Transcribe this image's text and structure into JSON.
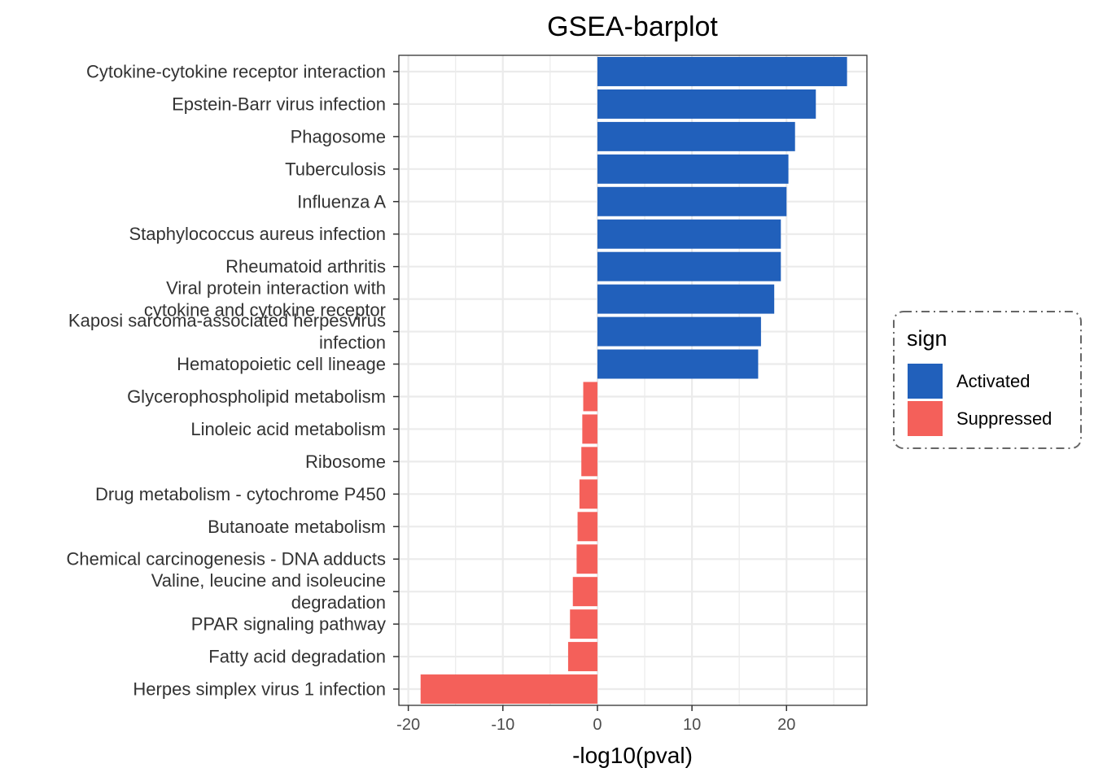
{
  "chart_data": {
    "type": "bar",
    "orientation": "horizontal",
    "title": "GSEA-barplot",
    "xlabel": "-log10(pval)",
    "ylabel": "",
    "xlim": [
      -21,
      28.5
    ],
    "xticks": [
      -20,
      -10,
      0,
      10,
      20
    ],
    "xtick_labels": [
      "-20",
      "-10",
      "0",
      "10",
      "20"
    ],
    "grid": true,
    "legend": {
      "title": "sign",
      "position": "right",
      "entries": [
        {
          "label": "Activated",
          "color": "#2160BB"
        },
        {
          "label": "Suppressed",
          "color": "#F4605A"
        }
      ]
    },
    "categories": [
      [
        "Cytokine-cytokine receptor interaction"
      ],
      [
        "Epstein-Barr virus infection"
      ],
      [
        "Phagosome"
      ],
      [
        "Tuberculosis"
      ],
      [
        "Influenza A"
      ],
      [
        "Staphylococcus aureus infection"
      ],
      [
        "Rheumatoid arthritis"
      ],
      [
        "Viral protein interaction with",
        "cytokine and cytokine receptor"
      ],
      [
        "Kaposi sarcoma-associated herpesvirus",
        "infection"
      ],
      [
        "Hematopoietic cell lineage"
      ],
      [
        "Glycerophospholipid metabolism"
      ],
      [
        "Linoleic acid metabolism"
      ],
      [
        "Ribosome"
      ],
      [
        "Drug metabolism - cytochrome P450"
      ],
      [
        "Butanoate metabolism"
      ],
      [
        "Chemical carcinogenesis - DNA adducts"
      ],
      [
        "Valine, leucine and isoleucine",
        "degradation"
      ],
      [
        "PPAR signaling pathway"
      ],
      [
        "Fatty acid degradation"
      ],
      [
        "Herpes simplex virus 1 infection"
      ]
    ],
    "values": [
      26.4,
      23.1,
      20.9,
      20.2,
      20.0,
      19.4,
      19.4,
      18.7,
      17.3,
      17.0,
      -1.5,
      -1.6,
      -1.7,
      -1.9,
      -2.1,
      -2.2,
      -2.6,
      -2.9,
      -3.1,
      -18.7
    ],
    "sign": [
      "Activated",
      "Activated",
      "Activated",
      "Activated",
      "Activated",
      "Activated",
      "Activated",
      "Activated",
      "Activated",
      "Activated",
      "Suppressed",
      "Suppressed",
      "Suppressed",
      "Suppressed",
      "Suppressed",
      "Suppressed",
      "Suppressed",
      "Suppressed",
      "Suppressed",
      "Suppressed"
    ]
  }
}
